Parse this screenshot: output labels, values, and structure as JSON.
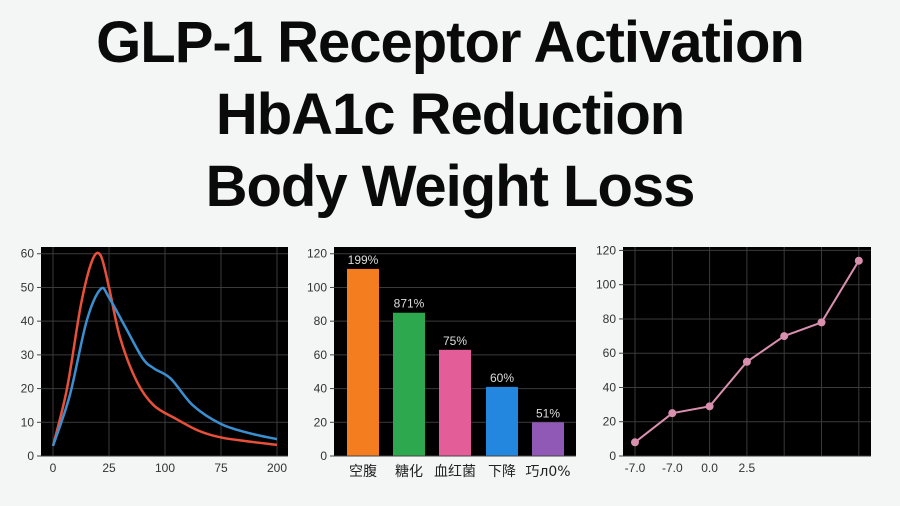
{
  "titles": [
    "GLP-1 Receptor Activation",
    "HbA1c Reduction",
    "Body Weight Loss"
  ],
  "chart_data": [
    {
      "type": "line",
      "x_tick_labels": [
        "0",
        "25",
        "100",
        "75",
        "200"
      ],
      "y_ticks": [
        0,
        10,
        20,
        30,
        40,
        50,
        60
      ],
      "ylim": [
        0,
        62
      ],
      "grid": true,
      "background": "#000000",
      "series": [
        {
          "color": "#e8503a",
          "points": [
            [
              0,
              3
            ],
            [
              0.25,
              20
            ],
            [
              0.5,
              45
            ],
            [
              0.7,
              58
            ],
            [
              0.85,
              59.5
            ],
            [
              1.0,
              50
            ],
            [
              1.2,
              35
            ],
            [
              1.5,
              22
            ],
            [
              1.8,
              15
            ],
            [
              2.2,
              11
            ],
            [
              2.6,
              7.5
            ],
            [
              3,
              5.5
            ],
            [
              3.5,
              4.3
            ],
            [
              4,
              3.3
            ]
          ]
        },
        {
          "color": "#3a8fd0",
          "points": [
            [
              0,
              3
            ],
            [
              0.3,
              18
            ],
            [
              0.6,
              40
            ],
            [
              0.85,
              49.5
            ],
            [
              1.0,
              47
            ],
            [
              1.3,
              38
            ],
            [
              1.6,
              29
            ],
            [
              1.8,
              26
            ],
            [
              2.1,
              23
            ],
            [
              2.5,
              15
            ],
            [
              3,
              9.5
            ],
            [
              3.5,
              6.8
            ],
            [
              4,
              5
            ]
          ]
        }
      ]
    },
    {
      "type": "bar",
      "categories": [
        "空腹",
        "糖化",
        "血红菌",
        "下降",
        "巧л0%"
      ],
      "values": [
        111,
        85,
        63,
        41,
        20
      ],
      "data_labels": [
        "199%",
        "871%",
        "75%",
        "60%",
        "51%"
      ],
      "colors": [
        "#f47d20",
        "#2ea84f",
        "#e35d98",
        "#2387e0",
        "#9059b5"
      ],
      "y_ticks": [
        0,
        20,
        40,
        60,
        80,
        100,
        120
      ],
      "ylim": [
        0,
        124
      ],
      "grid": true,
      "background": "#000000"
    },
    {
      "type": "line",
      "x_tick_labels": [
        "-7.0",
        "-7.0",
        "0.0",
        "2.5",
        "",
        "",
        ""
      ],
      "values": [
        8,
        25,
        29,
        55,
        70,
        78,
        114
      ],
      "y_ticks": [
        0,
        20,
        40,
        60,
        80,
        100,
        120
      ],
      "ylim": [
        0,
        122
      ],
      "grid": true,
      "marker": "circle",
      "color": "#d98fae",
      "background": "#000000"
    }
  ]
}
